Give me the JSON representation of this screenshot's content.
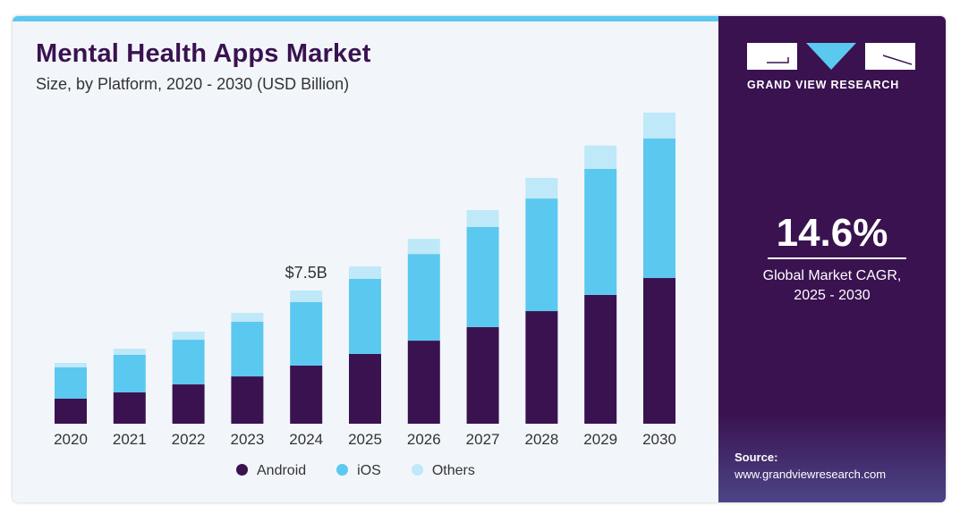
{
  "header": {
    "title": "Mental Health Apps Market",
    "subtitle": "Size, by Platform, 2020 - 2030 (USD Billion)"
  },
  "brand": {
    "name": "GRAND VIEW RESEARCH"
  },
  "highlight": {
    "value": "14.6%",
    "label_line1": "Global Market CAGR,",
    "label_line2": "2025 - 2030"
  },
  "source": {
    "label": "Source:",
    "url": "www.grandviewresearch.com"
  },
  "colors": {
    "Android": "#3a1250",
    "iOS": "#5bc8f0",
    "Others": "#bfe8f8",
    "accent": "#5bc8f0"
  },
  "chart_data": {
    "type": "bar",
    "stacked": true,
    "title": "Mental Health Apps Market",
    "subtitle": "Size, by Platform, 2020 - 2030 (USD Billion)",
    "categories": [
      "2020",
      "2021",
      "2022",
      "2023",
      "2024",
      "2025",
      "2026",
      "2027",
      "2028",
      "2029",
      "2030"
    ],
    "series": [
      {
        "name": "Android",
        "values": [
          1.41,
          1.76,
          2.21,
          2.66,
          3.27,
          3.92,
          4.67,
          5.43,
          6.33,
          7.24,
          8.19
        ]
      },
      {
        "name": "iOS",
        "values": [
          1.76,
          2.11,
          2.51,
          3.07,
          3.57,
          4.22,
          4.87,
          5.63,
          6.33,
          7.09,
          7.84
        ]
      },
      {
        "name": "Others",
        "values": [
          0.25,
          0.35,
          0.45,
          0.5,
          0.65,
          0.7,
          0.85,
          0.95,
          1.16,
          1.31,
          1.46
        ]
      }
    ],
    "annotations": [
      {
        "category": "2024",
        "text": "$7.5B"
      }
    ],
    "ylim": [
      0,
      18
    ],
    "grid": false,
    "legend": "bottom"
  }
}
